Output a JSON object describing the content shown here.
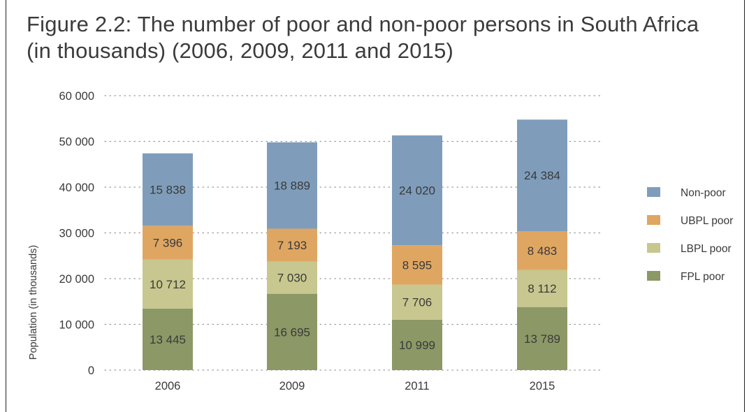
{
  "figure": {
    "title_line1": "Figure 2.2: The number of poor and non-poor persons in South Africa",
    "title_line2": "(in thousands) (2006, 2009, 2011 and 2015)"
  },
  "chart_data": {
    "type": "bar",
    "stacked": true,
    "title": "Figure 2.2: The number of poor and non-poor persons in South Africa (in thousands) (2006, 2009, 2011 and 2015)",
    "xlabel": "",
    "ylabel": "Population (in thousands)",
    "ylim": [
      0,
      60000
    ],
    "yticks": [
      0,
      10000,
      20000,
      30000,
      40000,
      50000,
      60000
    ],
    "ytick_labels": [
      "0",
      "10 000",
      "20 000",
      "30 000",
      "40 000",
      "50 000",
      "60 000"
    ],
    "grid": "horizontal dotted",
    "legend_position": "right",
    "categories": [
      "2006",
      "2009",
      "2011",
      "2015"
    ],
    "series": [
      {
        "name": "FPL poor",
        "color": "#8c9866",
        "values": [
          13445,
          16695,
          10999,
          13789
        ],
        "labels": [
          "13 445",
          "16 695",
          "10 999",
          "13 789"
        ]
      },
      {
        "name": "LBPL poor",
        "color": "#c7c78f",
        "values": [
          10712,
          7030,
          7706,
          8112
        ],
        "labels": [
          "10 712",
          "7 030",
          "7 706",
          "8 112"
        ]
      },
      {
        "name": "UBPL poor",
        "color": "#dfa662",
        "values": [
          7396,
          7193,
          8595,
          8483
        ],
        "labels": [
          "7 396",
          "7 193",
          "8 595",
          "8 483"
        ]
      },
      {
        "name": "Non-poor",
        "color": "#7f9dbb",
        "values": [
          15838,
          18889,
          24020,
          24384
        ],
        "labels": [
          "15 838",
          "18 889",
          "24 020",
          "24 384"
        ]
      }
    ],
    "legend_order": [
      "Non-poor",
      "UBPL poor",
      "LBPL poor",
      "FPL poor"
    ]
  }
}
